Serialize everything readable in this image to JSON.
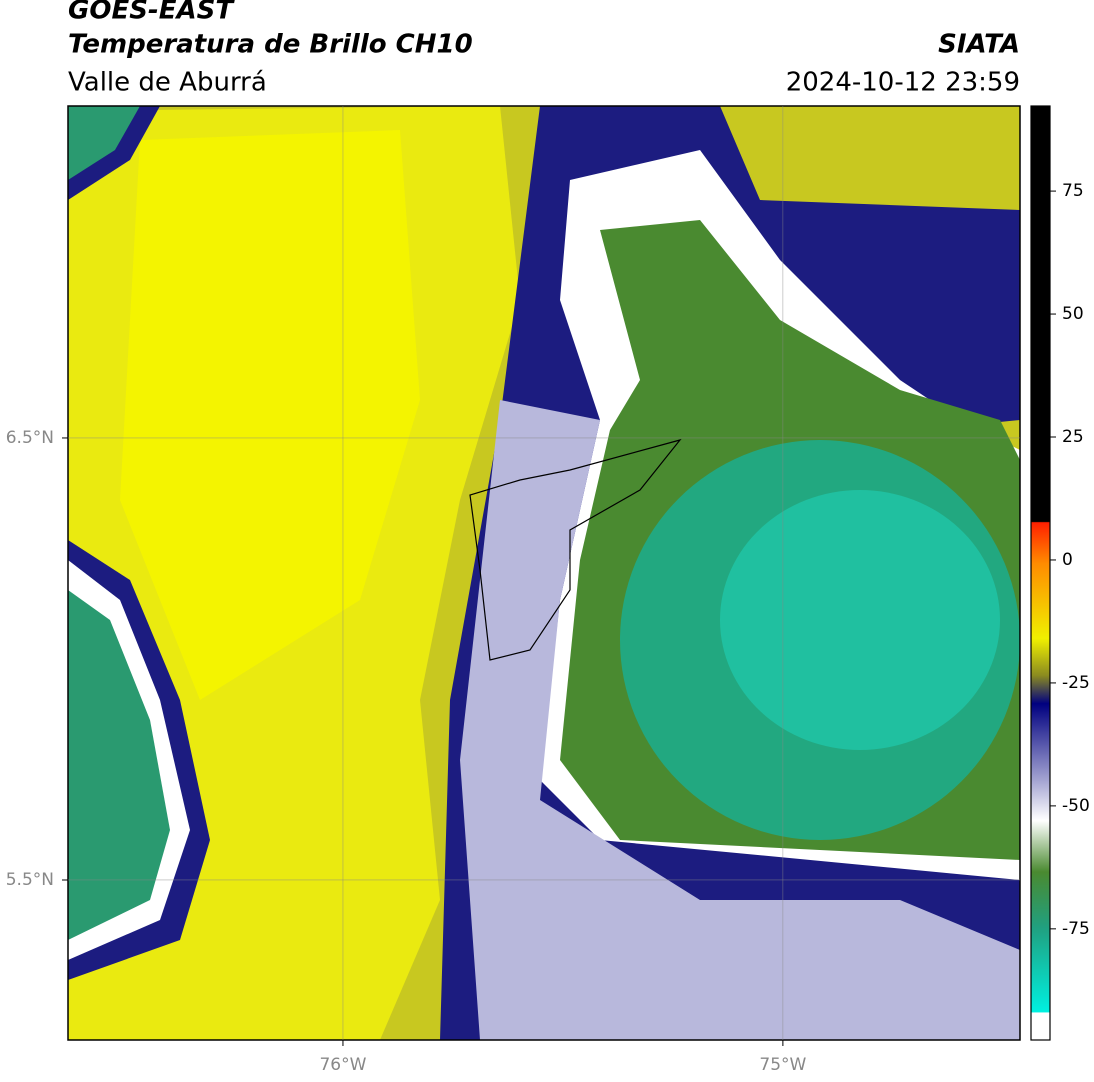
{
  "header": {
    "title": "GOES-EAST",
    "subtitle": "Temperatura de Brillo CH10",
    "region": "Valle de Aburrá",
    "source": "SIATA",
    "datetime": "2024-10-12 23:59"
  },
  "map": {
    "lonlim": [
      -76.625,
      -74.461
    ],
    "latlim": [
      5.138,
      7.251
    ],
    "lat_ticks": [
      {
        "value": 6.5,
        "label": "6.5°N"
      },
      {
        "value": 5.5,
        "label": "5.5°N"
      }
    ],
    "lon_ticks": [
      {
        "value": -76,
        "label": "76°W"
      },
      {
        "value": -75,
        "label": "75°W"
      }
    ]
  },
  "colorbar": {
    "lim": [
      -97.6,
      92.3
    ],
    "ticks": [
      75,
      50,
      25,
      0,
      -25,
      -50,
      -75
    ]
  }
}
